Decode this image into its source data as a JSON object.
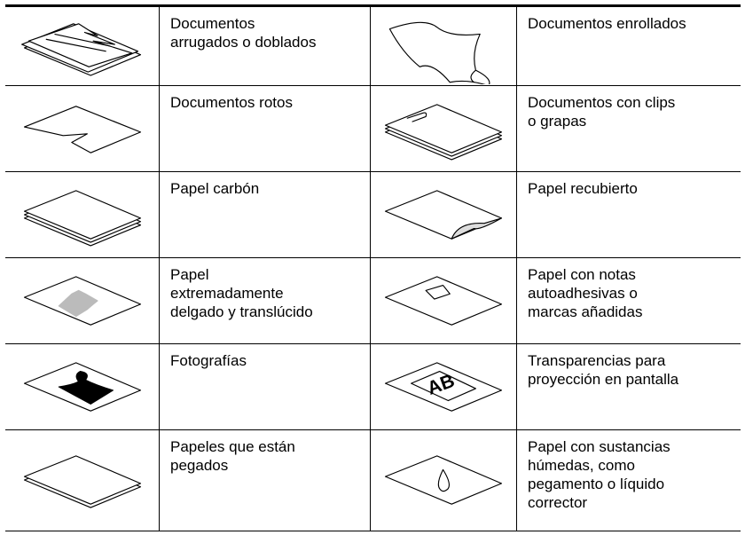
{
  "table": {
    "rows": [
      [
        "Documentos\narrugados o doblados",
        "Documentos enrollados"
      ],
      [
        "Documentos rotos",
        "Documentos con clips\no grapas"
      ],
      [
        "Papel carbón",
        "Papel recubierto"
      ],
      [
        "Papel\nextremadamente\ndelgado y translúcido",
        "Papel con notas\nautoadhesivas o\nmarcas añadidas"
      ],
      [
        "Fotografías",
        "Transparencias para\nproyección en pantalla"
      ],
      [
        "Papeles que están\npegados",
        "Papel con sustancias\nhúmedas, como\npegamento o líquido\ncorrector"
      ]
    ]
  }
}
